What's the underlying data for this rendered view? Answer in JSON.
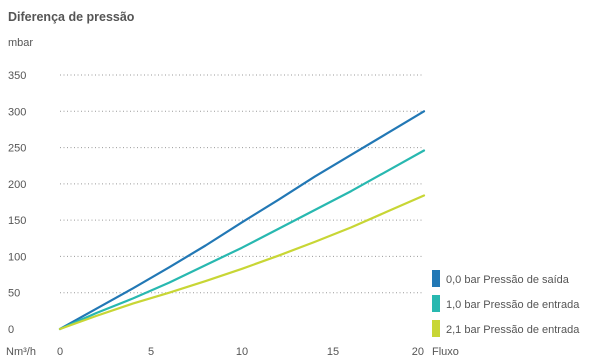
{
  "chart_data": {
    "type": "line",
    "title": "Diferença de pressão",
    "ylabel": "mbar",
    "xlabel_left": "Nm³/h",
    "xlabel_right": "Fluxo",
    "xlim": [
      0,
      20
    ],
    "ylim": [
      0,
      350
    ],
    "x_ticks": [
      0,
      5,
      10,
      15,
      20
    ],
    "y_ticks": [
      0,
      50,
      100,
      150,
      200,
      250,
      300,
      350
    ],
    "grid": "horizontal dotted",
    "legend_position": "bottom-right",
    "series": [
      {
        "name": "0,0 bar Pressão de saída",
        "color": "#2278b5",
        "x": [
          0,
          2,
          4,
          6,
          8,
          10,
          12,
          14,
          16,
          18,
          20
        ],
        "y": [
          0,
          28,
          56,
          85,
          115,
          147,
          178,
          210,
          240,
          270,
          300
        ]
      },
      {
        "name": "1,0 bar Pressão de entrada",
        "color": "#28b8b0",
        "x": [
          0,
          2,
          4,
          6,
          8,
          10,
          12,
          14,
          16,
          18,
          20
        ],
        "y": [
          0,
          22,
          42,
          64,
          88,
          112,
          138,
          164,
          190,
          218,
          246
        ]
      },
      {
        "name": "2,1 bar Pressão de entrada",
        "color": "#c8d635",
        "x": [
          0,
          2,
          4,
          6,
          8,
          10,
          12,
          14,
          16,
          18,
          20
        ],
        "y": [
          0,
          18,
          35,
          50,
          66,
          83,
          101,
          120,
          140,
          162,
          184
        ]
      }
    ]
  }
}
